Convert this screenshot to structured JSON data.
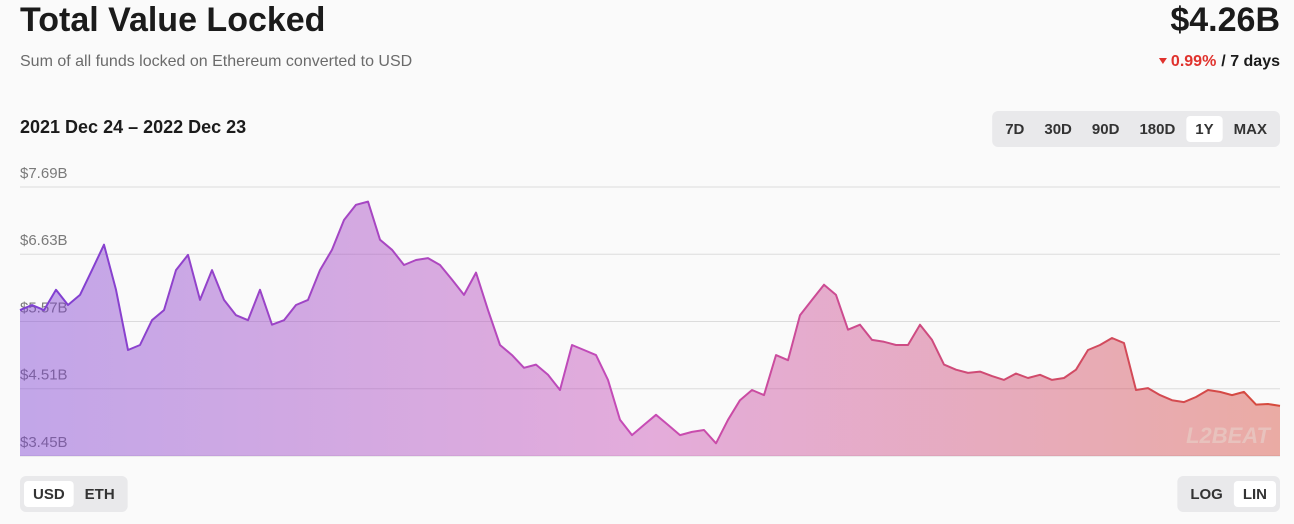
{
  "header": {
    "title": "Total Value Locked",
    "subtitle": "Sum of all funds locked on Ethereum converted to USD",
    "value": "$4.26B",
    "change": "0.99%",
    "period": "/ 7 days"
  },
  "range_label": "2021 Dec 24 – 2022 Dec 23",
  "time_range": {
    "options": [
      "7D",
      "30D",
      "90D",
      "180D",
      "1Y",
      "MAX"
    ],
    "selected": 4
  },
  "currency": {
    "options": [
      "USD",
      "ETH"
    ],
    "selected": 0
  },
  "scale": {
    "options": [
      "LOG",
      "LIN"
    ],
    "selected": 1
  },
  "watermark": "L2BEAT",
  "chart_data": {
    "type": "area",
    "colors": [
      "#7d3fd3",
      "#c84cb5",
      "#d64a3b"
    ],
    "ylim": [
      3.45,
      7.69
    ],
    "yticks": [
      {
        "value": 3.45,
        "label": "$3.45B"
      },
      {
        "value": 4.51,
        "label": "$4.51B"
      },
      {
        "value": 5.57,
        "label": "$5.57B"
      },
      {
        "value": 6.63,
        "label": "$6.63B"
      },
      {
        "value": 7.69,
        "label": "$7.69B"
      }
    ],
    "grid": true,
    "values": [
      5.75,
      5.83,
      5.75,
      6.07,
      5.83,
      5.99,
      6.38,
      6.78,
      6.07,
      5.12,
      5.2,
      5.59,
      5.75,
      6.38,
      6.62,
      5.91,
      6.38,
      5.91,
      5.67,
      5.59,
      6.07,
      5.52,
      5.59,
      5.83,
      5.91,
      6.38,
      6.7,
      7.17,
      7.41,
      7.46,
      6.86,
      6.7,
      6.46,
      6.54,
      6.57,
      6.46,
      6.23,
      5.99,
      6.34,
      5.75,
      5.2,
      5.04,
      4.84,
      4.89,
      4.73,
      4.49,
      5.2,
      5.12,
      5.04,
      4.65,
      4.02,
      3.78,
      3.94,
      4.1,
      3.94,
      3.78,
      3.83,
      3.86,
      3.65,
      4.02,
      4.33,
      4.49,
      4.41,
      5.04,
      4.96,
      5.67,
      5.91,
      6.15,
      5.99,
      5.44,
      5.52,
      5.28,
      5.25,
      5.2,
      5.2,
      5.52,
      5.28,
      4.89,
      4.81,
      4.76,
      4.78,
      4.71,
      4.65,
      4.75,
      4.68,
      4.73,
      4.65,
      4.68,
      4.81,
      5.12,
      5.2,
      5.31,
      5.23,
      4.49,
      4.52,
      4.41,
      4.33,
      4.3,
      4.38,
      4.49,
      4.46,
      4.41,
      4.46,
      4.26,
      4.27,
      4.24
    ]
  }
}
